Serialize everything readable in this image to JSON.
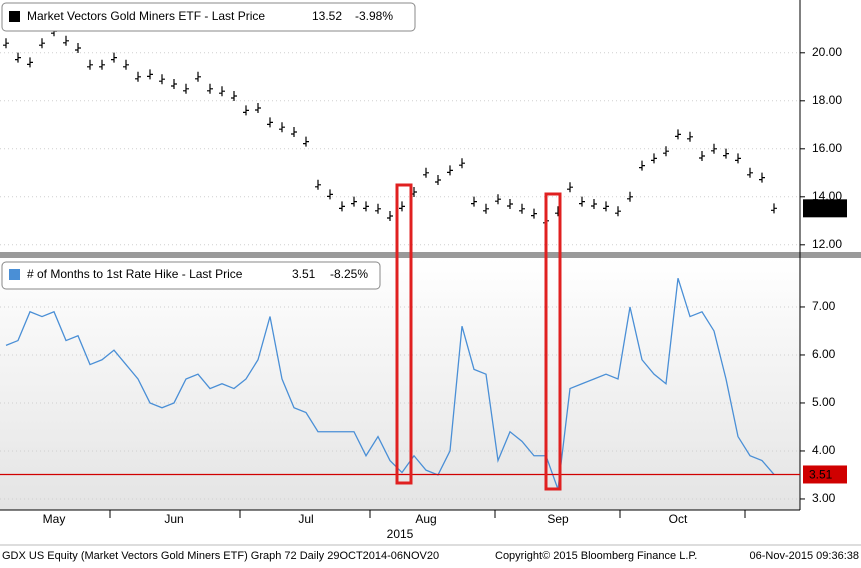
{
  "chart_data": [
    {
      "type": "tick",
      "legend_label": "Market Vectors Gold Miners ETF - Last Price",
      "last_price": 13.52,
      "change": "-3.98%",
      "color": "#000000",
      "values": [
        20.4,
        19.8,
        19.6,
        20.4,
        20.9,
        20.5,
        20.2,
        19.5,
        19.5,
        19.8,
        19.5,
        19.0,
        19.1,
        18.9,
        18.7,
        18.5,
        19.0,
        18.5,
        18.4,
        18.2,
        17.6,
        17.7,
        17.1,
        16.9,
        16.7,
        16.3,
        14.5,
        14.1,
        13.6,
        13.8,
        13.6,
        13.5,
        13.2,
        13.6,
        14.2,
        15.0,
        14.7,
        15.1,
        15.4,
        13.8,
        13.5,
        13.9,
        13.7,
        13.5,
        13.3,
        13.0,
        13.4,
        14.4,
        13.8,
        13.7,
        13.6,
        13.4,
        14.0,
        15.3,
        15.6,
        15.9,
        16.6,
        16.5,
        15.7,
        16.0,
        15.8,
        15.6,
        15.0,
        14.8,
        13.52
      ],
      "ylim": [
        11.7,
        22.2
      ],
      "yticks": [
        {
          "value": 12,
          "label": "12.00"
        },
        {
          "value": 14,
          "label": "14.00"
        },
        {
          "value": 16,
          "label": "16.00"
        },
        {
          "value": 18,
          "label": "18.00"
        },
        {
          "value": 20,
          "label": "20.00"
        }
      ],
      "grid": true
    },
    {
      "type": "line",
      "legend_label": "# of Months to 1st Rate Hike - Last Price",
      "last_price": 3.51,
      "change": "-8.25%",
      "color": "#4a8fd6",
      "ref_color": "#d00000",
      "categories": [
        null,
        null,
        null,
        null,
        "May",
        null,
        null,
        null,
        null,
        null,
        null,
        null,
        null,
        null,
        "Jun",
        null,
        null,
        null,
        null,
        null,
        null,
        null,
        null,
        null,
        null,
        "Jul",
        null,
        null,
        null,
        null,
        null,
        null,
        null,
        null,
        null,
        "Aug",
        null,
        null,
        null,
        null,
        null,
        null,
        null,
        null,
        null,
        null,
        "Sep",
        null,
        null,
        null,
        null,
        null,
        null,
        null,
        null,
        null,
        "Oct",
        null,
        null,
        null,
        null,
        null,
        null,
        null,
        null
      ],
      "values": [
        6.2,
        6.3,
        6.9,
        6.8,
        6.9,
        6.3,
        6.4,
        5.8,
        5.9,
        6.1,
        5.8,
        5.5,
        5.0,
        4.9,
        5.0,
        5.5,
        5.6,
        5.3,
        5.4,
        5.3,
        5.5,
        5.9,
        6.8,
        5.5,
        4.9,
        4.8,
        4.4,
        4.4,
        4.4,
        4.4,
        3.9,
        4.3,
        3.8,
        3.55,
        3.9,
        3.6,
        3.5,
        4.0,
        6.6,
        5.7,
        5.6,
        3.8,
        4.4,
        4.2,
        3.9,
        3.9,
        3.2,
        5.3,
        5.4,
        5.5,
        5.6,
        5.5,
        7.0,
        5.9,
        5.6,
        5.4,
        7.6,
        6.8,
        6.9,
        6.5,
        5.5,
        4.3,
        3.9,
        3.8,
        3.51
      ],
      "ylim": [
        2.77,
        8.02
      ],
      "yticks": [
        {
          "value": 3,
          "label": "3.00"
        },
        {
          "value": 4,
          "label": "4.00"
        },
        {
          "value": 5,
          "label": "5.00"
        },
        {
          "value": 6,
          "label": "6.00"
        },
        {
          "value": 7,
          "label": "7.00"
        }
      ],
      "grid": true
    }
  ],
  "year_label": "2015",
  "footer": {
    "left": "GDX US Equity (Market Vectors Gold Miners ETF) Graph 72  Daily 29OCT2014-06NOV20",
    "center": "Copyright© 2015 Bloomberg Finance L.P.",
    "right": "06-Nov-2015 09:36:38"
  }
}
